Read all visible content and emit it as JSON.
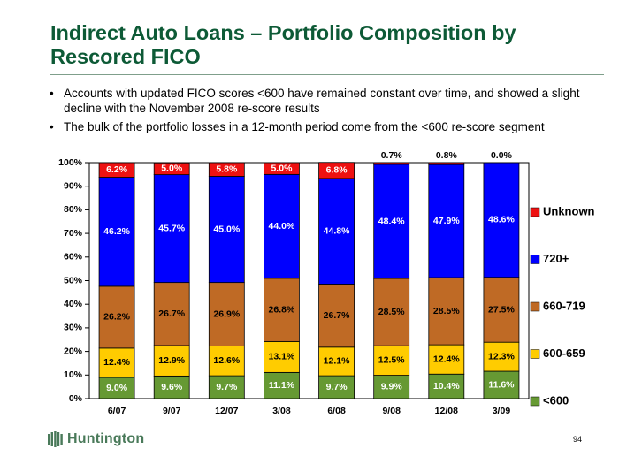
{
  "title": "Indirect Auto Loans – Portfolio Composition by Rescored FICO",
  "bullets": [
    "Accounts with updated FICO scores <600 have remained constant over time, and showed a slight decline with the November 2008 re-score results",
    "The bulk of the portfolio losses in a 12-month period come from the <600 re-score segment"
  ],
  "bullet_glyph": "•",
  "logo_text": "Huntington",
  "page_number": "94",
  "chart_data": {
    "type": "bar",
    "stacked": true,
    "categories": [
      "6/07",
      "9/07",
      "12/07",
      "3/08",
      "6/08",
      "9/08",
      "12/08",
      "3/09"
    ],
    "series": [
      {
        "name": "<600",
        "color": "#669933",
        "values": [
          9.0,
          9.6,
          9.7,
          11.1,
          9.7,
          9.9,
          10.4,
          11.6
        ],
        "labels": [
          "9.0%",
          "9.6%",
          "9.7%",
          "11.1%",
          "9.7%",
          "9.9%",
          "10.4%",
          "11.6%"
        ]
      },
      {
        "name": "600-659",
        "color": "#ffcc00",
        "values": [
          12.4,
          12.9,
          12.6,
          13.1,
          12.1,
          12.5,
          12.4,
          12.3
        ],
        "labels": [
          "12.4%",
          "12.9%",
          "12.6%",
          "13.1%",
          "12.1%",
          "12.5%",
          "12.4%",
          "12.3%"
        ]
      },
      {
        "name": "660-719",
        "color": "#bf6a25",
        "values": [
          26.2,
          26.7,
          26.9,
          26.8,
          26.7,
          28.5,
          28.5,
          27.5
        ],
        "labels": [
          "26.2%",
          "26.7%",
          "26.9%",
          "26.8%",
          "26.7%",
          "28.5%",
          "28.5%",
          "27.5%"
        ]
      },
      {
        "name": "720+",
        "color": "#0000ff",
        "values": [
          46.2,
          45.7,
          45.0,
          44.0,
          44.8,
          48.4,
          47.9,
          48.6
        ],
        "labels": [
          "46.2%",
          "45.7%",
          "45.0%",
          "44.0%",
          "44.8%",
          "48.4%",
          "47.9%",
          "48.6%"
        ]
      },
      {
        "name": "Unknown",
        "color": "#ee1111",
        "values": [
          6.2,
          5.0,
          5.8,
          5.0,
          6.8,
          0.7,
          0.8,
          0.0
        ],
        "labels": [
          "6.2%",
          "5.0%",
          "5.8%",
          "5.0%",
          "6.8%",
          "0.7%",
          "0.8%",
          "0.0%"
        ]
      }
    ],
    "legend_order": [
      "Unknown",
      "720+",
      "660-719",
      "600-659",
      "<600"
    ],
    "y_ticks": [
      "0%",
      "10%",
      "20%",
      "30%",
      "40%",
      "50%",
      "60%",
      "70%",
      "80%",
      "90%",
      "100%"
    ],
    "ylim": [
      0,
      100
    ],
    "legend_position": "right",
    "grid": false
  }
}
